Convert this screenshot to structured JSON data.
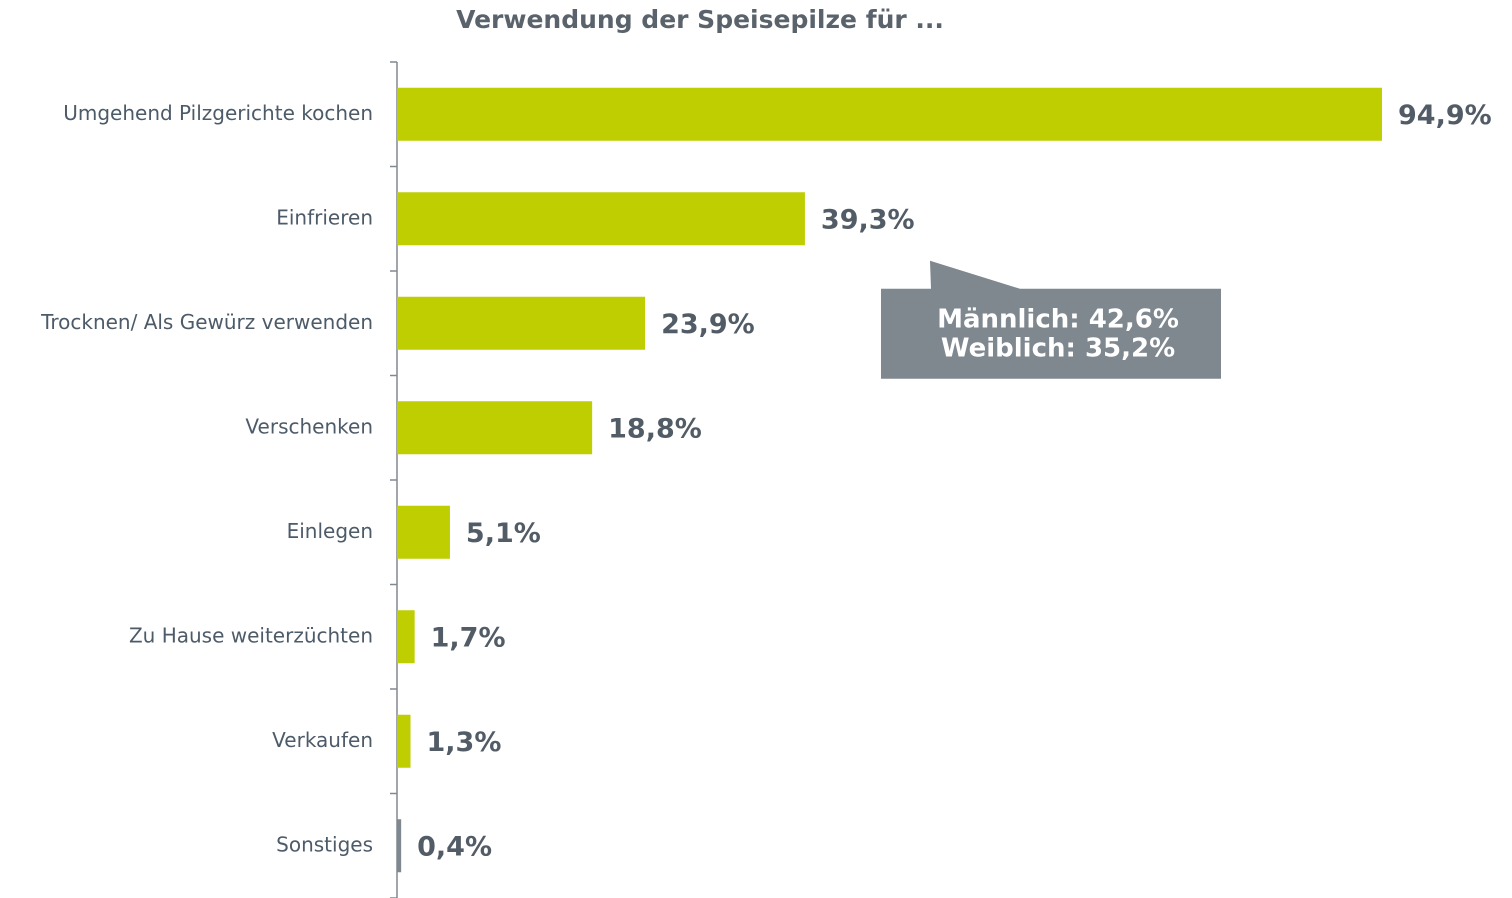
{
  "chart_data": {
    "type": "bar",
    "orientation": "horizontal",
    "title": "Verwendung der Speisepilze für ...",
    "categories": [
      "Umgehend Pilzgerichte kochen",
      "Einfrieren",
      "Trocknen/ Als Gewürz verwenden",
      "Verschenken",
      "Einlegen",
      "Zu Hause weiterzüchten",
      "Verkaufen",
      "Sonstiges"
    ],
    "values": [
      94.9,
      39.3,
      23.9,
      18.8,
      5.1,
      1.7,
      1.3,
      0.4
    ],
    "value_labels": [
      "94,9%",
      "39,3%",
      "23,9%",
      "18,8%",
      "5,1%",
      "1,7%",
      "1,3%",
      "0,4%"
    ],
    "colors": [
      "#bfce00",
      "#bfce00",
      "#bfce00",
      "#bfce00",
      "#bfce00",
      "#bfce00",
      "#bfce00",
      "#7f878f"
    ],
    "annotations": [
      {
        "lines": [
          "Männlich: 42,6%",
          "Weiblich: 35,2%"
        ],
        "category": 1
      }
    ]
  }
}
